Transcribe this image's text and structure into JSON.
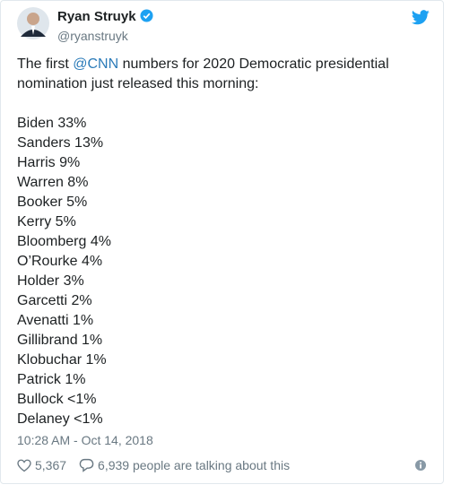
{
  "header": {
    "name": "Ryan Struyk",
    "handle": "@ryanstruyk"
  },
  "body": {
    "text_before": "The first ",
    "mention": "@CNN",
    "text_after": " numbers for 2020 Democratic presidential nomination just released this morning:",
    "list": [
      "Biden 33%",
      "Sanders 13%",
      "Harris 9%",
      "Warren 8%",
      "Booker 5%",
      "Kerry 5%",
      "Bloomberg 4%",
      "O’Rourke 4%",
      "Holder 3%",
      "Garcetti 2%",
      "Avenatti 1%",
      "Gillibrand 1%",
      "Klobuchar 1%",
      "Patrick 1%",
      "Bullock <1%",
      "Delaney <1%"
    ]
  },
  "timestamp": "10:28 AM - Oct 14, 2018",
  "footer": {
    "likes": "5,367",
    "talking": "6,939 people are talking about this"
  }
}
